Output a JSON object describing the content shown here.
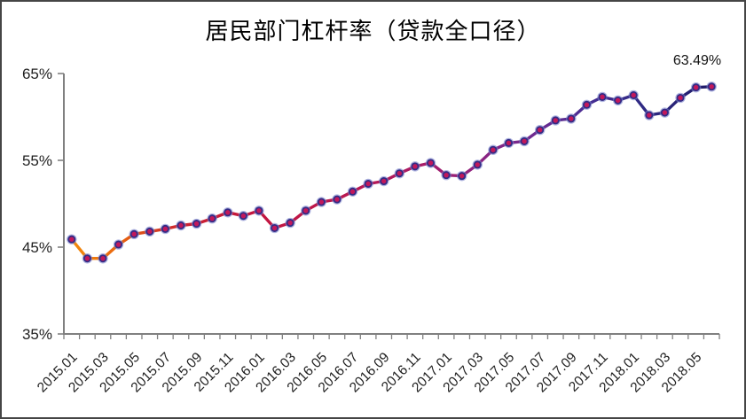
{
  "figure": {
    "title": "居民部门杠杆率（贷款全口径）",
    "annotation_text": "63.49%"
  },
  "chart_data": {
    "type": "line",
    "title": "居民部门杠杆率（贷款全口径）",
    "x": [
      "2015.01",
      "2015.02",
      "2015.03",
      "2015.04",
      "2015.05",
      "2015.06",
      "2015.07",
      "2015.08",
      "2015.09",
      "2015.10",
      "2015.11",
      "2015.12",
      "2016.01",
      "2016.02",
      "2016.03",
      "2016.04",
      "2016.05",
      "2016.06",
      "2016.07",
      "2016.08",
      "2016.09",
      "2016.10",
      "2016.11",
      "2016.12",
      "2017.01",
      "2017.02",
      "2017.03",
      "2017.04",
      "2017.05",
      "2017.06",
      "2017.07",
      "2017.08",
      "2017.09",
      "2017.10",
      "2017.11",
      "2017.12",
      "2018.01",
      "2018.02",
      "2018.03",
      "2018.04",
      "2018.05",
      "2018.06"
    ],
    "series": [
      {
        "name": "居民部门杠杆率",
        "values": [
          45.9,
          43.7,
          43.7,
          45.3,
          46.5,
          46.8,
          47.1,
          47.5,
          47.7,
          48.3,
          49.0,
          48.6,
          49.2,
          47.2,
          47.8,
          49.2,
          50.2,
          50.5,
          51.4,
          52.3,
          52.6,
          53.5,
          54.3,
          54.7,
          53.3,
          53.2,
          54.5,
          56.2,
          57.0,
          57.2,
          58.5,
          59.6,
          59.8,
          61.4,
          62.3,
          61.9,
          62.5,
          60.2,
          60.5,
          62.2,
          63.4,
          63.49
        ]
      }
    ],
    "xlabel": "",
    "ylabel": "",
    "ylim": [
      35,
      65
    ],
    "ytick_values": [
      65,
      55,
      45,
      35
    ],
    "ytick_labels": [
      "65%",
      "55%",
      "45%",
      "35%"
    ],
    "xtick_label_every": 2,
    "xtick_labels_shown": [
      "2015.01",
      "2015.03",
      "2015.05",
      "2015.07",
      "2015.09",
      "2015.11",
      "2016.01",
      "2016.03",
      "2016.05",
      "2016.07",
      "2016.09",
      "2016.11",
      "2017.01",
      "2017.03",
      "2017.05",
      "2017.07",
      "2017.09",
      "2017.11",
      "2018.01",
      "2018.03",
      "2018.05"
    ],
    "grid": false,
    "legend": false,
    "annotation": {
      "text": "63.49%",
      "x": "2018.06",
      "value": 63.49
    },
    "unit": "percent",
    "colors": {
      "axis": "#808080",
      "tick_text": "#1f1f1f",
      "marker_glow": "#7b86cb",
      "marker_ring": "#342b86",
      "marker_center": "#c2185b",
      "line_gradient": [
        {
          "offset": 0.0,
          "color": "#F28A0C"
        },
        {
          "offset": 0.05,
          "color": "#EF740D"
        },
        {
          "offset": 0.1,
          "color": "#E05416"
        },
        {
          "offset": 0.17,
          "color": "#CD2430"
        },
        {
          "offset": 0.28,
          "color": "#C4163E"
        },
        {
          "offset": 0.45,
          "color": "#B81853"
        },
        {
          "offset": 0.55,
          "color": "#A81D68"
        },
        {
          "offset": 0.63,
          "color": "#8F2380"
        },
        {
          "offset": 0.72,
          "color": "#6F2A90"
        },
        {
          "offset": 0.81,
          "color": "#472E94"
        },
        {
          "offset": 0.89,
          "color": "#2F2A84"
        },
        {
          "offset": 1.0,
          "color": "#201B69"
        }
      ]
    }
  }
}
